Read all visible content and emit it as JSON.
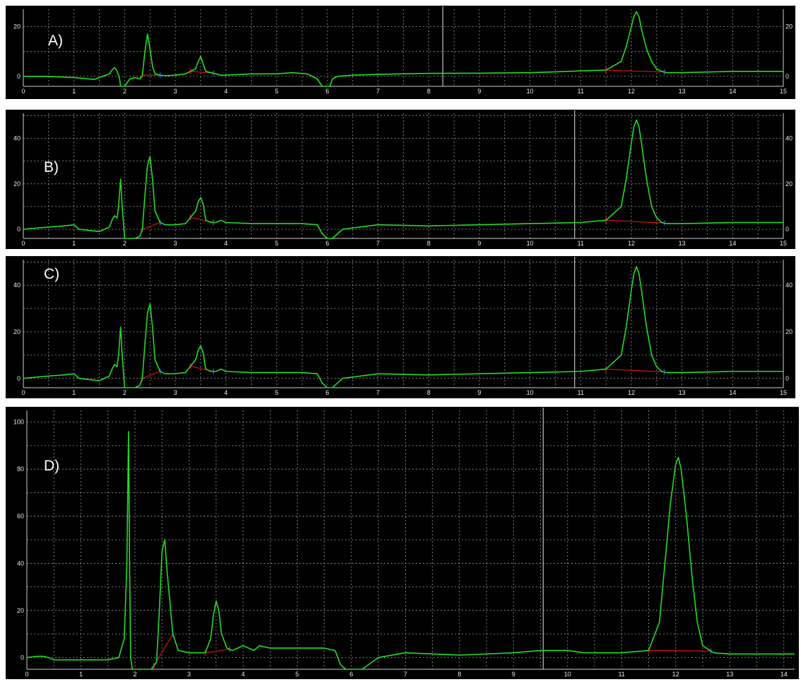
{
  "chart_data": [
    {
      "type": "line",
      "label": "A)",
      "xlim": [
        0,
        15
      ],
      "ylim": [
        -4,
        27
      ],
      "xticks": [
        0,
        1,
        2,
        3,
        4,
        5,
        6,
        7,
        8,
        9,
        10,
        11,
        12,
        13,
        14,
        15
      ],
      "yticks": [
        0,
        20
      ],
      "right_axis": true,
      "cursor_x": 8.28,
      "series": [
        {
          "x": [
            0,
            0.5,
            1.0,
            1.4,
            1.7,
            1.75,
            1.8,
            1.85,
            1.9,
            1.92,
            1.95,
            2.0,
            2.1,
            2.2,
            2.3,
            2.35,
            2.4,
            2.45,
            2.5,
            2.55,
            2.6,
            2.7,
            2.8,
            3.0,
            3.2,
            3.4,
            3.45,
            3.5,
            3.55,
            3.6,
            3.7,
            3.8,
            3.9,
            4.0,
            4.5,
            5.0,
            5.3,
            5.6,
            5.8,
            5.9,
            5.95,
            6.0,
            6.05,
            6.1,
            6.2,
            6.5,
            7.0,
            8.0,
            9.0,
            10.0,
            10.5,
            11.0,
            11.5,
            11.8,
            11.9,
            12.0,
            12.05,
            12.1,
            12.15,
            12.2,
            12.3,
            12.4,
            12.5,
            12.6,
            12.7,
            13.0,
            14.0,
            15.0
          ],
          "y": [
            0,
            0,
            -0.5,
            -1.2,
            1,
            2.5,
            3.5,
            2.2,
            -1,
            -4,
            -4,
            -4,
            -1,
            -0.5,
            -1,
            0.5,
            10,
            17,
            11,
            4,
            1,
            0.5,
            0.3,
            0.5,
            1,
            3,
            6,
            8,
            5,
            2,
            1.5,
            1,
            0.5,
            0.5,
            1,
            1,
            1.5,
            1,
            -1,
            -4,
            -4,
            -4,
            -4,
            -1,
            0,
            0.5,
            0.8,
            1.2,
            1.3,
            1.5,
            1.8,
            2.2,
            2.5,
            6,
            12,
            20,
            24,
            26,
            24,
            19,
            11,
            6,
            3,
            2,
            1.5,
            1.5,
            2,
            2
          ]
        }
      ]
    },
    {
      "type": "line",
      "label": "B)",
      "xlim": [
        0,
        15
      ],
      "ylim": [
        -4,
        51
      ],
      "xticks": [
        0,
        1,
        2,
        3,
        4,
        5,
        6,
        7,
        8,
        9,
        10,
        11,
        12,
        13,
        14,
        15
      ],
      "yticks": [
        0,
        20,
        40
      ],
      "right_axis": true,
      "cursor_x": 10.88,
      "series": [
        {
          "x": [
            0,
            0.5,
            0.8,
            1.0,
            1.1,
            1.5,
            1.7,
            1.75,
            1.8,
            1.85,
            1.88,
            1.92,
            1.95,
            2.0,
            2.1,
            2.2,
            2.3,
            2.35,
            2.4,
            2.45,
            2.5,
            2.55,
            2.6,
            2.7,
            2.8,
            3.0,
            3.2,
            3.4,
            3.45,
            3.5,
            3.55,
            3.6,
            3.7,
            3.8,
            3.9,
            4.0,
            4.5,
            5.0,
            5.5,
            5.8,
            5.9,
            6.0,
            6.1,
            6.3,
            7.0,
            8.0,
            9.0,
            10.0,
            11.0,
            11.5,
            11.8,
            11.9,
            12.0,
            12.05,
            12.1,
            12.15,
            12.2,
            12.3,
            12.4,
            12.5,
            12.6,
            12.7,
            13.0,
            14.0,
            15.0
          ],
          "y": [
            0,
            1,
            1.5,
            2,
            0,
            -1,
            1,
            4,
            6,
            5,
            10,
            22,
            10,
            -4,
            -4,
            -4,
            -3,
            0,
            15,
            28,
            32,
            22,
            8,
            3,
            2,
            2,
            2.5,
            8,
            12,
            14,
            11,
            4,
            3,
            3,
            4,
            3,
            2.5,
            2.5,
            2.5,
            2,
            -2,
            -4,
            -4,
            0,
            2,
            1.5,
            2,
            2.5,
            3,
            4,
            10,
            22,
            38,
            45,
            48,
            45,
            38,
            22,
            10,
            5,
            3,
            2.5,
            2.5,
            3,
            3
          ]
        }
      ]
    },
    {
      "type": "line",
      "label": "C)",
      "xlim": [
        0,
        15
      ],
      "ylim": [
        -4,
        51
      ],
      "xticks": [
        0,
        1,
        2,
        3,
        4,
        5,
        6,
        7,
        8,
        9,
        10,
        11,
        12,
        13,
        14,
        15
      ],
      "yticks": [
        0,
        20,
        40
      ],
      "right_axis": true,
      "cursor_x": 10.88,
      "series": [
        {
          "x": [
            0,
            0.5,
            0.8,
            1.0,
            1.1,
            1.5,
            1.7,
            1.75,
            1.8,
            1.85,
            1.88,
            1.92,
            1.95,
            2.0,
            2.1,
            2.2,
            2.3,
            2.35,
            2.4,
            2.45,
            2.5,
            2.55,
            2.6,
            2.7,
            2.8,
            3.0,
            3.2,
            3.4,
            3.45,
            3.5,
            3.55,
            3.6,
            3.7,
            3.8,
            3.9,
            4.0,
            4.5,
            5.0,
            5.5,
            5.8,
            5.9,
            6.0,
            6.1,
            6.3,
            7.0,
            8.0,
            9.0,
            10.0,
            11.0,
            11.5,
            11.8,
            11.9,
            12.0,
            12.05,
            12.1,
            12.15,
            12.2,
            12.3,
            12.4,
            12.5,
            12.6,
            12.7,
            13.0,
            14.0,
            15.0
          ],
          "y": [
            0,
            1,
            1.5,
            2,
            0,
            -1,
            1,
            4,
            6,
            5,
            10,
            22,
            10,
            -4,
            -4,
            -4,
            -3,
            0,
            15,
            28,
            32,
            22,
            8,
            3,
            2,
            2,
            2.5,
            8,
            12,
            14,
            11,
            4,
            3,
            3,
            4,
            3,
            2.5,
            2.5,
            2.5,
            2,
            -2,
            -4,
            -4,
            0,
            2,
            1.5,
            2,
            2.5,
            3,
            4,
            10,
            22,
            38,
            45,
            48,
            45,
            38,
            22,
            10,
            5,
            3,
            2.5,
            2.5,
            3,
            3
          ]
        }
      ]
    },
    {
      "type": "line",
      "label": "D)",
      "xlim": [
        0,
        14.2
      ],
      "ylim": [
        -5,
        105
      ],
      "xticks": [
        0,
        1,
        2,
        3,
        4,
        5,
        6,
        7,
        8,
        9,
        10,
        11,
        12,
        13,
        14
      ],
      "yticks": [
        0,
        20,
        40,
        60,
        80,
        100
      ],
      "right_axis": false,
      "cursor_x": 9.55,
      "series": [
        {
          "x": [
            0,
            0.2,
            0.3,
            0.4,
            0.5,
            1.0,
            1.5,
            1.7,
            1.8,
            1.85,
            1.88,
            1.9,
            1.92,
            1.95,
            2.0,
            2.1,
            2.2,
            2.3,
            2.4,
            2.45,
            2.5,
            2.55,
            2.6,
            2.7,
            2.8,
            3.0,
            3.2,
            3.3,
            3.4,
            3.45,
            3.5,
            3.55,
            3.6,
            3.7,
            3.8,
            3.9,
            4.0,
            4.1,
            4.2,
            4.3,
            4.5,
            5.0,
            5.5,
            5.7,
            5.8,
            5.9,
            6.0,
            6.1,
            6.2,
            6.5,
            7.0,
            8.0,
            9.0,
            9.5,
            10.0,
            10.3,
            11.0,
            11.5,
            11.7,
            11.8,
            11.9,
            12.0,
            12.05,
            12.1,
            12.2,
            12.3,
            12.4,
            12.5,
            12.7,
            13.0,
            14.0,
            14.2
          ],
          "y": [
            0,
            0.5,
            0.5,
            0,
            -1,
            -1,
            -1,
            0,
            8,
            40,
            96,
            40,
            0,
            -5,
            -5,
            -5,
            -5,
            -5,
            -2,
            20,
            45,
            50,
            35,
            10,
            3,
            2,
            2,
            2,
            8,
            18,
            24,
            20,
            10,
            4,
            3,
            4,
            5,
            4,
            3,
            5,
            4,
            4,
            4,
            3,
            -3,
            -5,
            -5,
            -5,
            -5,
            0,
            2,
            1,
            2,
            3,
            3,
            2,
            2,
            3,
            15,
            40,
            65,
            82,
            85,
            80,
            60,
            35,
            15,
            5,
            2,
            1.5,
            1.5,
            1.5
          ]
        }
      ]
    }
  ]
}
